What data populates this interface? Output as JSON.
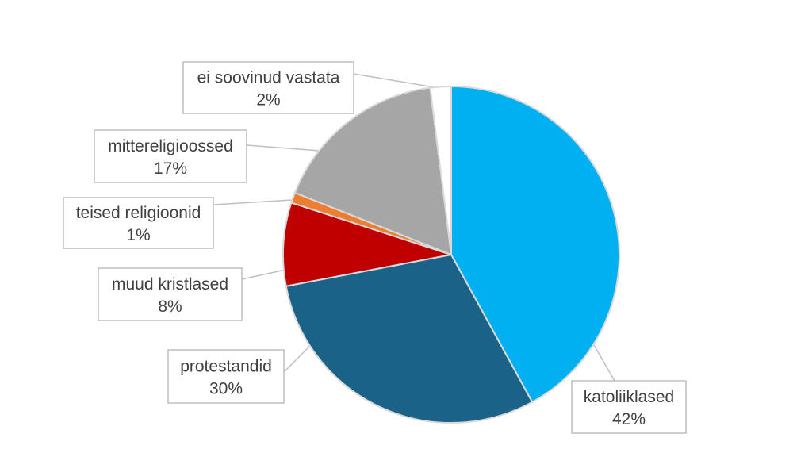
{
  "chart_data": {
    "type": "pie",
    "title": "",
    "legend": "none",
    "slices": [
      {
        "label": "katoliiklased",
        "value": 42,
        "value_label": "42%",
        "color": "#00b0f0"
      },
      {
        "label": "protestandid",
        "value": 30,
        "value_label": "30%",
        "color": "#1b6288"
      },
      {
        "label": "muud kristlased",
        "value": 8,
        "value_label": "8%",
        "color": "#c00000"
      },
      {
        "label": "teised religioonid",
        "value": 1,
        "value_label": "1%",
        "color": "#ed7d31"
      },
      {
        "label": "mittereligioossed",
        "value": 17,
        "value_label": "17%",
        "color": "#a6a6a6"
      },
      {
        "label": "ei soovinud vastata",
        "value": 2,
        "value_label": "2%",
        "color": "#ffffff"
      }
    ]
  }
}
